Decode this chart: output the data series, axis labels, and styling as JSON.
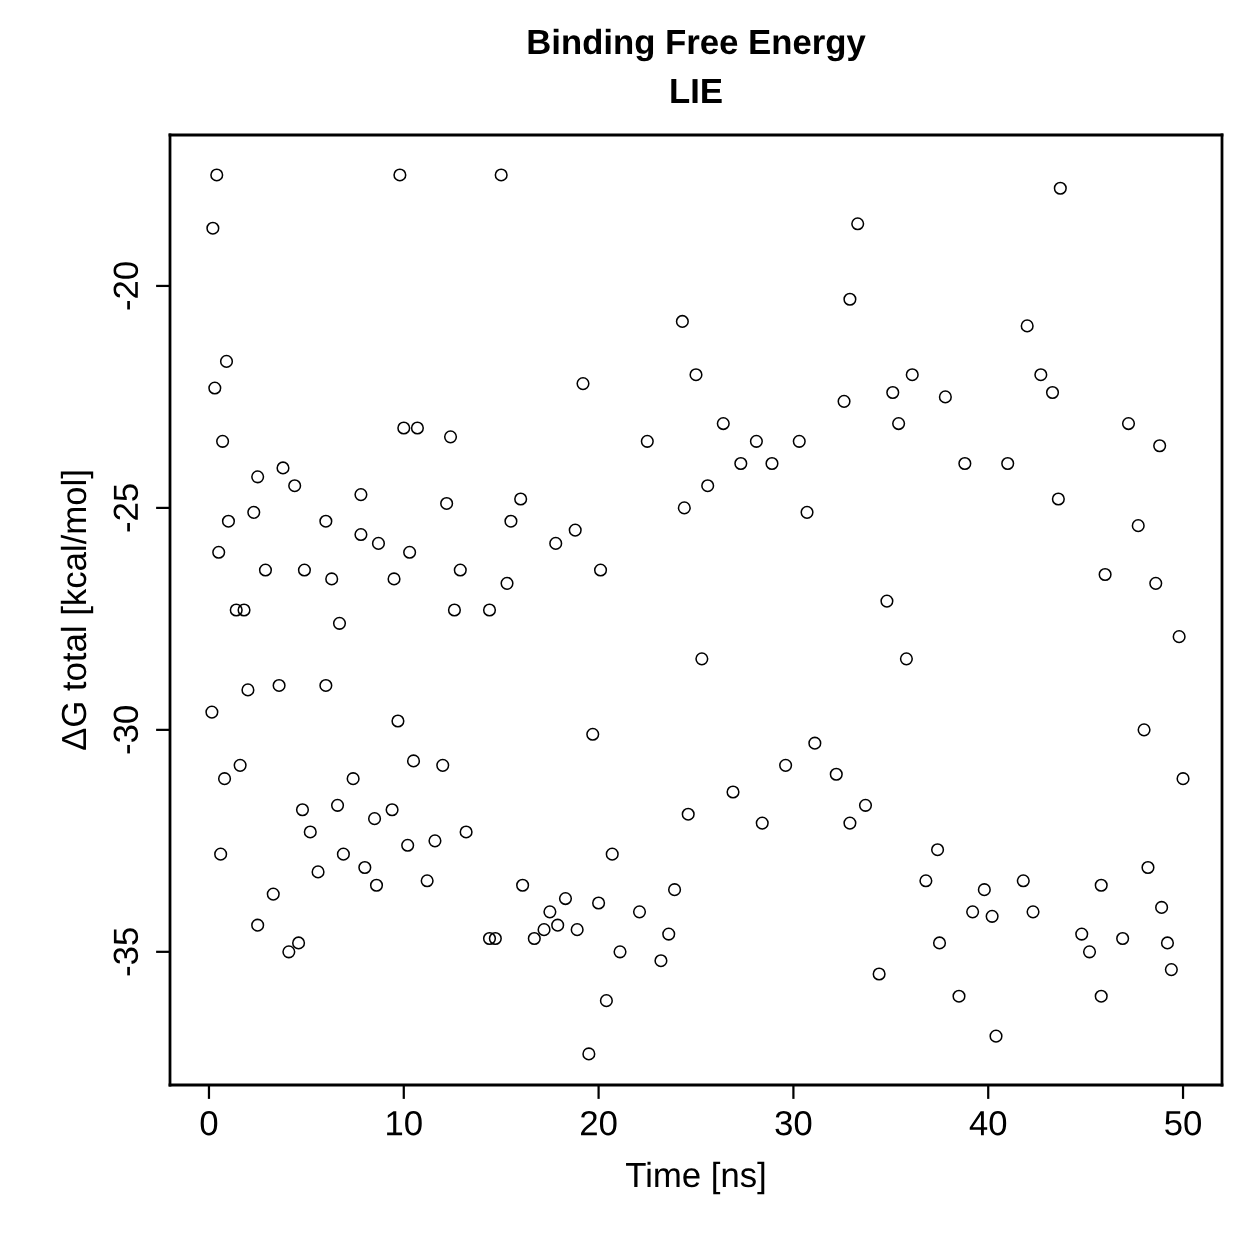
{
  "chart_data": {
    "type": "scatter",
    "title": "Binding Free Energy",
    "subtitle": "LIE",
    "xlabel": "Time [ns]",
    "ylabel": "ΔG total [kcal/mol]",
    "xlim": [
      -2,
      52
    ],
    "ylim": [
      -38.0,
      -16.6
    ],
    "xticks": [
      0,
      10,
      20,
      30,
      40,
      50
    ],
    "yticks": [
      -35,
      -30,
      -25,
      -20
    ],
    "marker": "circle",
    "grid": false,
    "legend": false,
    "series": [
      {
        "color": "#000000",
        "x": [
          0.15,
          0.2,
          0.4,
          0.3,
          0.9,
          0.7,
          0.5,
          0.6,
          0.8,
          1.0,
          1.4,
          1.6,
          1.8,
          2.3,
          2.5,
          2.5,
          2.0,
          2.9,
          3.3,
          3.6,
          3.8,
          4.1,
          4.4,
          4.6,
          4.8,
          4.9,
          5.2,
          5.6,
          6.0,
          6.0,
          6.3,
          6.7,
          6.6,
          6.9,
          7.8,
          7.8,
          7.4,
          8.0,
          8.5,
          8.6,
          8.7,
          9.4,
          9.5,
          9.8,
          10.0,
          10.7,
          10.2,
          10.3,
          9.7,
          10.5,
          11.2,
          11.6,
          12.4,
          12.2,
          12.6,
          12.9,
          13.2,
          12.0,
          14.4,
          14.7,
          14.4,
          15.0,
          15.3,
          15.5,
          16.0,
          16.1,
          16.7,
          17.2,
          17.5,
          17.9,
          17.8,
          18.8,
          18.3,
          18.9,
          19.2,
          19.5,
          20.0,
          20.4,
          20.1,
          19.7,
          21.1,
          20.7,
          22.1,
          22.5,
          23.2,
          23.6,
          23.9,
          24.3,
          24.4,
          24.6,
          25.0,
          25.3,
          25.6,
          26.4,
          26.9,
          27.3,
          28.1,
          28.4,
          28.9,
          29.6,
          30.3,
          30.7,
          31.1,
          32.2,
          32.6,
          32.9,
          32.9,
          33.3,
          33.7,
          34.4,
          34.8,
          35.1,
          35.4,
          35.8,
          36.1,
          36.8,
          37.4,
          37.8,
          37.5,
          38.5,
          38.8,
          39.2,
          39.8,
          40.2,
          40.4,
          41.0,
          41.8,
          42.0,
          42.3,
          42.7,
          43.3,
          43.7,
          43.6,
          44.8,
          45.2,
          45.8,
          45.8,
          46.0,
          46.9,
          47.2,
          47.7,
          48.0,
          48.2,
          48.6,
          48.8,
          48.9,
          49.2,
          49.4,
          49.8,
          50.0
        ],
        "values": [
          -29.6,
          -18.7,
          -17.5,
          -22.3,
          -21.7,
          -23.5,
          -26.0,
          -32.8,
          -31.1,
          -25.3,
          -27.3,
          -30.8,
          -27.3,
          -25.1,
          -34.4,
          -24.3,
          -29.1,
          -26.4,
          -33.7,
          -29.0,
          -24.1,
          -35.0,
          -24.5,
          -34.8,
          -31.8,
          -26.4,
          -32.3,
          -33.2,
          -29.0,
          -25.3,
          -26.6,
          -27.6,
          -31.7,
          -32.8,
          -24.7,
          -25.6,
          -31.1,
          -33.1,
          -32.0,
          -33.5,
          -25.8,
          -31.8,
          -26.6,
          -17.5,
          -23.2,
          -23.2,
          -32.6,
          -26.0,
          -29.8,
          -30.7,
          -33.4,
          -32.5,
          -23.4,
          -24.9,
          -27.3,
          -26.4,
          -32.3,
          -30.8,
          -34.7,
          -34.7,
          -27.3,
          -17.5,
          -26.7,
          -25.3,
          -24.8,
          -33.5,
          -34.7,
          -34.5,
          -34.1,
          -34.4,
          -25.8,
          -25.5,
          -33.8,
          -34.5,
          -22.2,
          -37.3,
          -33.9,
          -36.1,
          -26.4,
          -30.1,
          -35.0,
          -32.8,
          -34.1,
          -23.5,
          -35.2,
          -34.6,
          -33.6,
          -20.8,
          -25.0,
          -31.9,
          -22.0,
          -28.4,
          -24.5,
          -23.1,
          -31.4,
          -24.0,
          -23.5,
          -32.1,
          -24.0,
          -30.8,
          -23.5,
          -25.1,
          -30.3,
          -31.0,
          -22.6,
          -32.1,
          -20.3,
          -18.6,
          -31.7,
          -35.5,
          -27.1,
          -22.4,
          -23.1,
          -28.4,
          -22.0,
          -33.4,
          -32.7,
          -22.5,
          -34.8,
          -36.0,
          -24.0,
          -34.1,
          -33.6,
          -34.2,
          -36.9,
          -24.0,
          -33.4,
          -20.9,
          -34.1,
          -22.0,
          -22.4,
          -17.8,
          -24.8,
          -34.6,
          -35.0,
          -36.0,
          -33.5,
          -26.5,
          -34.7,
          -23.1,
          -25.4,
          -30.0,
          -33.1,
          -26.7,
          -23.6,
          -34.0,
          -34.8,
          -35.4,
          -27.9,
          -31.1
        ]
      }
    ]
  }
}
